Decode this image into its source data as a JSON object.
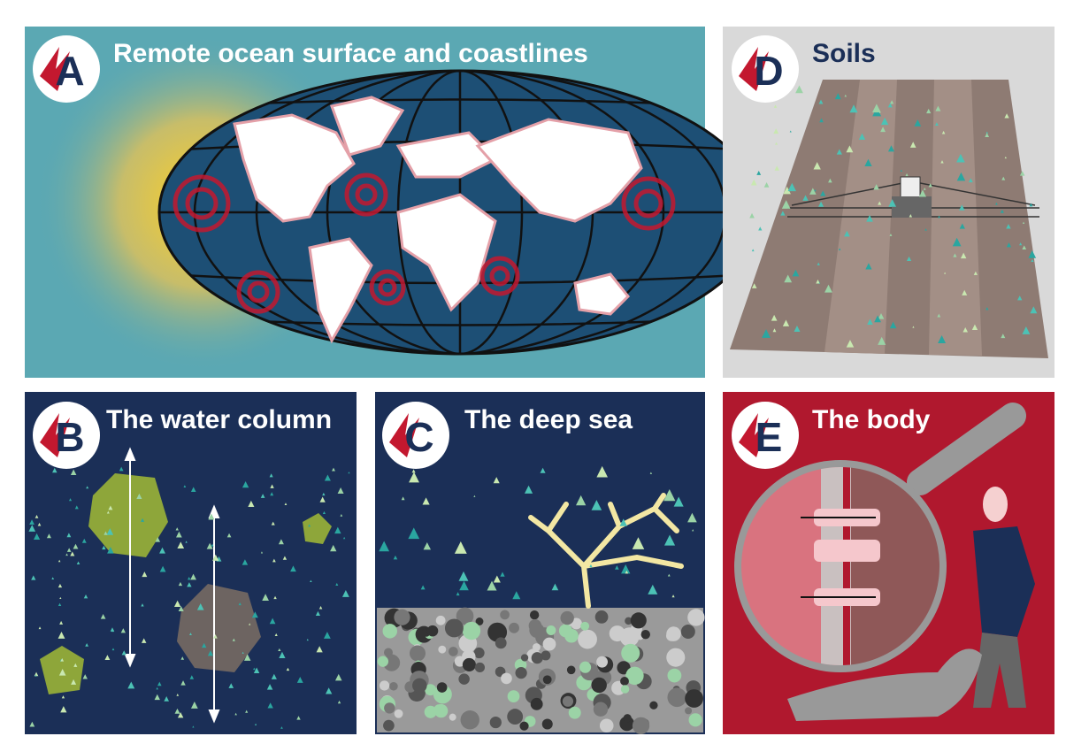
{
  "panels": [
    {
      "letter": "A",
      "title": "Remote ocean surface and coastlines"
    },
    {
      "letter": "D",
      "title": "Soils"
    },
    {
      "letter": "B",
      "title": "The water column"
    },
    {
      "letter": "C",
      "title": "The deep sea"
    },
    {
      "letter": "E",
      "title": "The body"
    }
  ]
}
